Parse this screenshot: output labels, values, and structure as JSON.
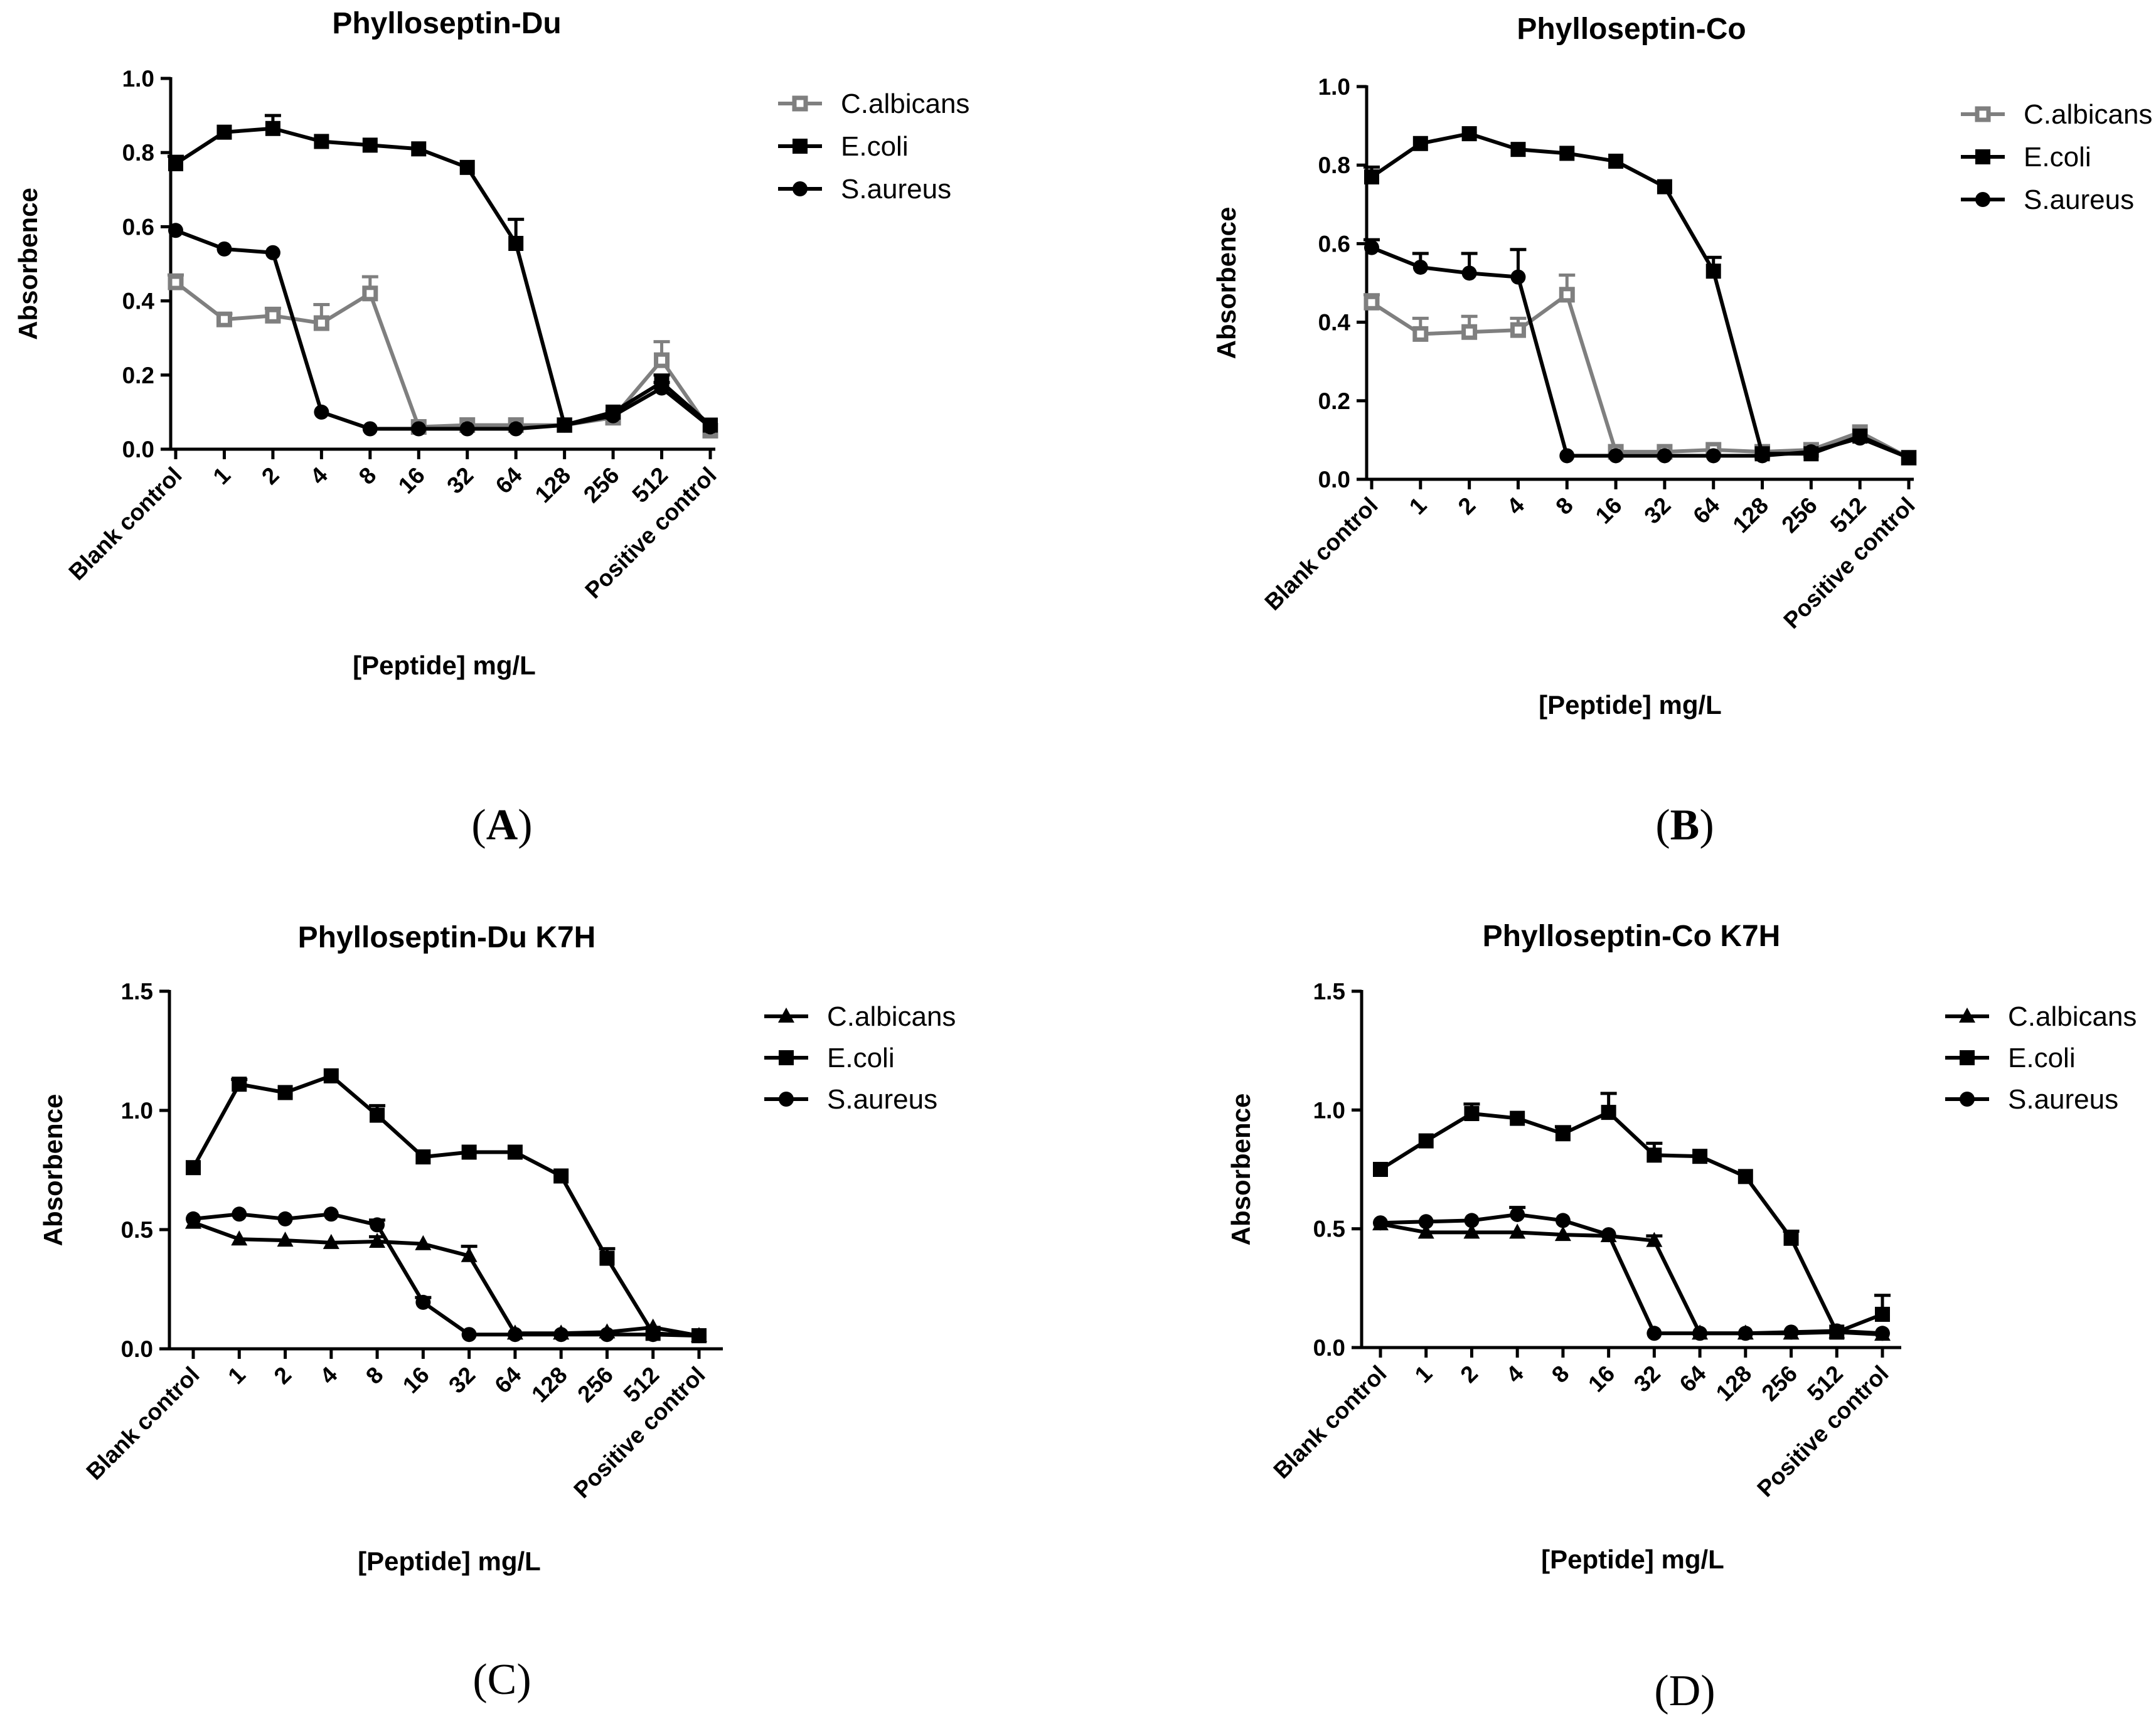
{
  "figure": {
    "panel_labels": [
      {
        "open": "(",
        "letter": "A",
        "close": ")"
      },
      {
        "open": "(",
        "letter": "B",
        "close": ")"
      },
      {
        "open": "(",
        "letter": "C",
        "close": ")"
      },
      {
        "open": "(",
        "letter": "D",
        "close": ")"
      }
    ]
  },
  "chart_data": [
    {
      "type": "line",
      "title": "Phylloseptin-Du",
      "xlabel": "[Peptide] mg/L",
      "ylabel": "Absorbence",
      "categories": [
        "Blank control",
        "1",
        "2",
        "4",
        "8",
        "16",
        "32",
        "64",
        "128",
        "256",
        "512",
        "Positive control"
      ],
      "ylim": [
        0,
        1.0
      ],
      "yticks": [
        "0.0",
        "0.2",
        "0.4",
        "0.6",
        "0.8",
        "1.0"
      ],
      "ytick_values": [
        0,
        0.2,
        0.4,
        0.6,
        0.8,
        1.0
      ],
      "legend_position": "top-right",
      "series": [
        {
          "name": "C.albicans",
          "marker": "square-open",
          "color": "#7f7f7f",
          "values": [
            0.45,
            0.35,
            0.36,
            0.34,
            0.42,
            0.06,
            0.065,
            0.065,
            0.065,
            0.085,
            0.24,
            0.05
          ],
          "errors": [
            0.02,
            0.015,
            0.02,
            0.05,
            0.045,
            0.01,
            0.01,
            0.01,
            0.01,
            0.01,
            0.05,
            0.01
          ]
        },
        {
          "name": "E.coli",
          "marker": "square",
          "color": "#000000",
          "values": [
            0.77,
            0.855,
            0.865,
            0.83,
            0.82,
            0.81,
            0.76,
            0.555,
            0.065,
            0.1,
            0.18,
            0.065
          ],
          "errors": [
            0.02,
            0.01,
            0.035,
            0.01,
            0.01,
            0.01,
            0.01,
            0.065,
            0.01,
            0.01,
            0.02,
            0.01
          ]
        },
        {
          "name": "S.aureus",
          "marker": "circle",
          "color": "#000000",
          "values": [
            0.59,
            0.54,
            0.53,
            0.1,
            0.055,
            0.055,
            0.055,
            0.055,
            0.065,
            0.09,
            0.165,
            0.06
          ],
          "errors": [
            0.01,
            0.01,
            0.01,
            0.01,
            0.01,
            0.01,
            0.01,
            0.01,
            0.01,
            0.01,
            0.015,
            0.01
          ]
        }
      ]
    },
    {
      "type": "line",
      "title": "Phylloseptin-Co",
      "xlabel": "[Peptide] mg/L",
      "ylabel": "Absorbence",
      "categories": [
        "Blank control",
        "1",
        "2",
        "4",
        "8",
        "16",
        "32",
        "64",
        "128",
        "256",
        "512",
        "Positive control"
      ],
      "ylim": [
        0,
        1.0
      ],
      "yticks": [
        "0.0",
        "0.2",
        "0.4",
        "0.6",
        "0.8",
        "1.0"
      ],
      "ytick_values": [
        0,
        0.2,
        0.4,
        0.6,
        0.8,
        1.0
      ],
      "legend_position": "top-right",
      "series": [
        {
          "name": "C.albicans",
          "marker": "square-open",
          "color": "#7f7f7f",
          "values": [
            0.45,
            0.37,
            0.375,
            0.38,
            0.47,
            0.07,
            0.07,
            0.075,
            0.07,
            0.075,
            0.12,
            0.055
          ],
          "errors": [
            0.02,
            0.04,
            0.04,
            0.03,
            0.05,
            0.01,
            0.01,
            0.01,
            0.01,
            0.01,
            0.01,
            0.01
          ]
        },
        {
          "name": "E.coli",
          "marker": "square",
          "color": "#000000",
          "values": [
            0.77,
            0.855,
            0.88,
            0.84,
            0.83,
            0.81,
            0.745,
            0.53,
            0.065,
            0.065,
            0.11,
            0.055
          ],
          "errors": [
            0.025,
            0.01,
            0.01,
            0.01,
            0.01,
            0.01,
            0.01,
            0.035,
            0.01,
            0.01,
            0.01,
            0.01
          ]
        },
        {
          "name": "S.aureus",
          "marker": "circle",
          "color": "#000000",
          "values": [
            0.59,
            0.54,
            0.525,
            0.515,
            0.06,
            0.06,
            0.06,
            0.06,
            0.06,
            0.07,
            0.105,
            0.055
          ],
          "errors": [
            0.02,
            0.035,
            0.05,
            0.07,
            0.01,
            0.01,
            0.01,
            0.01,
            0.01,
            0.01,
            0.01,
            0.01
          ]
        }
      ]
    },
    {
      "type": "line",
      "title": "Phylloseptin-Du K7H",
      "xlabel": "[Peptide] mg/L",
      "ylabel": "Absorbence",
      "categories": [
        "Blank control",
        "1",
        "2",
        "4",
        "8",
        "16",
        "32",
        "64",
        "128",
        "256",
        "512",
        "Positive control"
      ],
      "ylim": [
        0,
        1.5
      ],
      "yticks": [
        "0.0",
        "0.5",
        "1.0",
        "1.5"
      ],
      "ytick_values": [
        0,
        0.5,
        1.0,
        1.5
      ],
      "legend_position": "top-right",
      "series": [
        {
          "name": "C.albicans",
          "marker": "triangle",
          "color": "#000000",
          "values": [
            0.53,
            0.46,
            0.455,
            0.445,
            0.45,
            0.44,
            0.39,
            0.065,
            0.065,
            0.07,
            0.09,
            0.055
          ],
          "errors": [
            0.01,
            0.01,
            0.01,
            0.01,
            0.02,
            0.01,
            0.04,
            0.01,
            0.01,
            0.01,
            0.01,
            0.01
          ]
        },
        {
          "name": "E.coli",
          "marker": "square",
          "color": "#000000",
          "values": [
            0.76,
            1.11,
            1.075,
            1.145,
            0.98,
            0.805,
            0.825,
            0.825,
            0.725,
            0.38,
            0.065,
            0.055
          ],
          "errors": [
            0.01,
            0.02,
            0.01,
            0.01,
            0.04,
            0.01,
            0.01,
            0.01,
            0.01,
            0.04,
            0.01,
            0.01
          ]
        },
        {
          "name": "S.aureus",
          "marker": "circle",
          "color": "#000000",
          "values": [
            0.545,
            0.565,
            0.545,
            0.565,
            0.52,
            0.195,
            0.06,
            0.06,
            0.06,
            0.06,
            0.06,
            0.055
          ],
          "errors": [
            0.01,
            0.01,
            0.01,
            0.01,
            0.02,
            0.02,
            0.01,
            0.01,
            0.01,
            0.01,
            0.01,
            0.01
          ]
        }
      ]
    },
    {
      "type": "line",
      "title": "Phylloseptin-Co K7H",
      "xlabel": "[Peptide] mg/L",
      "ylabel": "Absorbence",
      "categories": [
        "Blank control",
        "1",
        "2",
        "4",
        "8",
        "16",
        "32",
        "64",
        "128",
        "256",
        "512",
        "Positive control"
      ],
      "ylim": [
        0,
        1.5
      ],
      "yticks": [
        "0.0",
        "0.5",
        "1.0",
        "1.5"
      ],
      "ytick_values": [
        0,
        0.5,
        1.0,
        1.5
      ],
      "legend_position": "top-right",
      "series": [
        {
          "name": "C.albicans",
          "marker": "triangle",
          "color": "#000000",
          "values": [
            0.52,
            0.485,
            0.485,
            0.485,
            0.475,
            0.47,
            0.45,
            0.06,
            0.06,
            0.06,
            0.065,
            0.055
          ],
          "errors": [
            0.01,
            0.01,
            0.01,
            0.01,
            0.01,
            0.01,
            0.02,
            0.01,
            0.01,
            0.01,
            0.01,
            0.01
          ]
        },
        {
          "name": "E.coli",
          "marker": "square",
          "color": "#000000",
          "values": [
            0.75,
            0.87,
            0.985,
            0.965,
            0.9,
            0.99,
            0.81,
            0.805,
            0.72,
            0.46,
            0.065,
            0.14
          ],
          "errors": [
            0.01,
            0.01,
            0.04,
            0.01,
            0.03,
            0.08,
            0.05,
            0.01,
            0.01,
            0.03,
            0.01,
            0.08
          ]
        },
        {
          "name": "S.aureus",
          "marker": "circle",
          "color": "#000000",
          "values": [
            0.525,
            0.53,
            0.535,
            0.56,
            0.535,
            0.475,
            0.06,
            0.06,
            0.06,
            0.065,
            0.07,
            0.06
          ],
          "errors": [
            0.01,
            0.01,
            0.01,
            0.03,
            0.01,
            0.01,
            0.01,
            0.01,
            0.01,
            0.01,
            0.01,
            0.01
          ]
        }
      ]
    }
  ]
}
